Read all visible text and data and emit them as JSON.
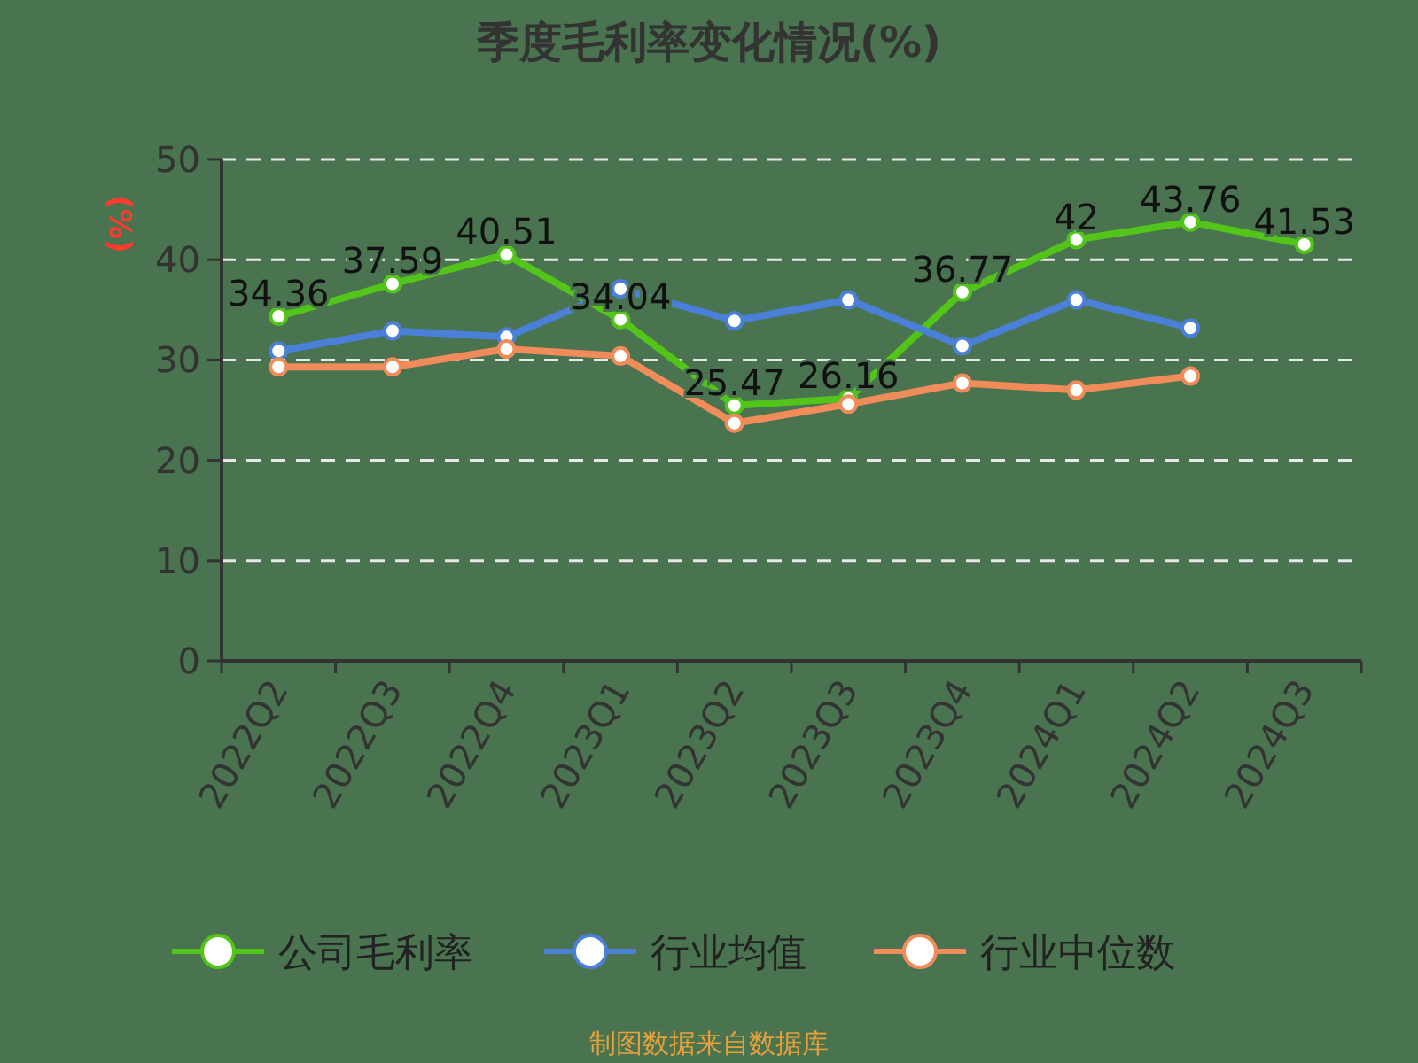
{
  "chart_data": {
    "type": "line",
    "title": "季度毛利率变化情况(%)",
    "ylabel": "(%)",
    "categories": [
      "2022Q2",
      "2022Q3",
      "2022Q4",
      "2023Q1",
      "2023Q2",
      "2023Q3",
      "2023Q4",
      "2024Q1",
      "2024Q2",
      "2024Q3"
    ],
    "series": [
      {
        "name": "公司毛利率",
        "color": "#52c41a",
        "values": [
          34.36,
          37.59,
          40.51,
          34.04,
          25.47,
          26.16,
          36.77,
          42,
          43.76,
          41.53
        ],
        "value_labels": [
          "34.36",
          "37.59",
          "40.51",
          "34.04",
          "25.47",
          "26.16",
          "36.77",
          "42",
          "43.76",
          "41.53"
        ]
      },
      {
        "name": "行业均值",
        "color": "#4a80d8",
        "values": [
          30.9,
          32.9,
          32.3,
          37.1,
          33.9,
          36.0,
          31.4,
          36.0,
          33.2,
          null
        ]
      },
      {
        "name": "行业中位数",
        "color": "#f08c5a",
        "values": [
          29.3,
          29.3,
          31.1,
          30.4,
          23.7,
          25.6,
          27.7,
          27.0,
          28.4,
          null
        ]
      }
    ],
    "ylim": [
      0,
      50
    ],
    "yticks": [
      0,
      10,
      20,
      30,
      40,
      50
    ],
    "grid": "y",
    "legend": "bottom",
    "marker": "circle",
    "line_style": "solid",
    "annotations": [
      "制图数据来自数据库"
    ]
  }
}
